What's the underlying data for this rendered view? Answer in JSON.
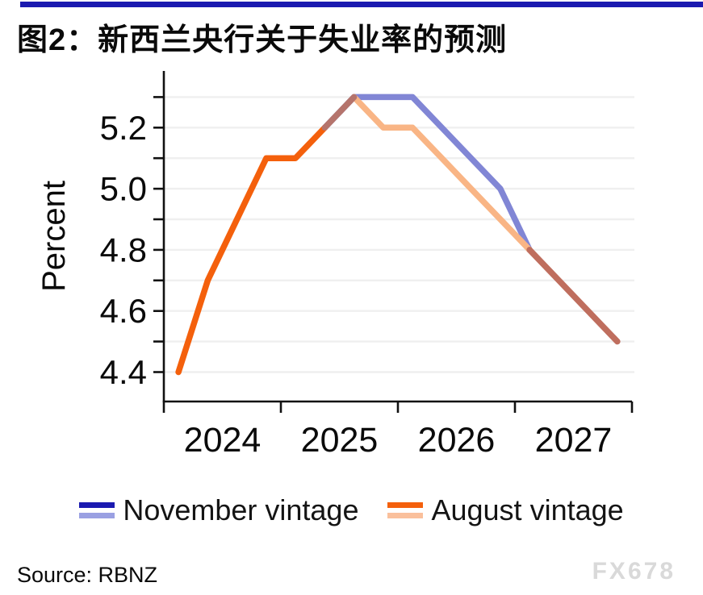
{
  "page": {
    "title": "图2：新西兰央行关于失业率的预测",
    "source": "Source: RBNZ",
    "watermark": "FX678"
  },
  "legend": {
    "items": [
      {
        "label": "November vintage",
        "color_dark": "#1b1ab0",
        "color_light": "#9aa0e2"
      },
      {
        "label": "August vintage",
        "color_dark": "#f4600c",
        "color_light": "#fac09c"
      }
    ]
  },
  "chart_data": {
    "type": "line",
    "title": "图2：新西兰央行关于失业率的预测",
    "xlabel": "",
    "ylabel": "Percent",
    "x_tick_labels": [
      "2024",
      "2025",
      "2026",
      "2027"
    ],
    "x_axis_year_ticks": [
      2024,
      2025,
      2026,
      2027,
      2028
    ],
    "xlim": [
      2024,
      2028
    ],
    "ylim": [
      4.3,
      5.39
    ],
    "grid": "horizontal",
    "legend_position": "bottom",
    "y_gridlines": [
      4.4,
      4.5,
      4.6,
      4.7,
      4.8,
      4.9,
      5.0,
      5.1,
      5.2,
      5.3
    ],
    "y_tick_values": [
      4.4,
      4.5,
      4.6,
      4.7,
      4.8,
      4.9,
      5.0,
      5.1,
      5.2,
      5.3
    ],
    "y_tick_labels": [
      {
        "value": 4.4,
        "label": "4.4"
      },
      {
        "value": 4.6,
        "label": "4.6"
      },
      {
        "value": 4.8,
        "label": "4.8"
      },
      {
        "value": 5.0,
        "label": "5.0"
      },
      {
        "value": 5.2,
        "label": "5.2"
      }
    ],
    "series": [
      {
        "name": "November vintage",
        "quarters": [
          "2025Q2",
          "2025Q3",
          "2025Q4",
          "2026Q1",
          "2026Q2",
          "2026Q3",
          "2026Q4",
          "2027Q1",
          "2027Q2",
          "2027Q3",
          "2027Q4"
        ],
        "values": [
          5.2,
          5.3,
          5.3,
          5.3,
          5.2,
          5.1,
          5.0,
          4.8,
          4.7,
          4.6,
          4.5
        ]
      },
      {
        "name": "August vintage",
        "quarters": [
          "2024Q1",
          "2024Q2",
          "2024Q3",
          "2024Q4",
          "2025Q1",
          "2025Q2",
          "2025Q3",
          "2025Q4",
          "2026Q1",
          "2026Q2",
          "2026Q3",
          "2026Q4",
          "2027Q1",
          "2027Q2",
          "2027Q3",
          "2027Q4"
        ],
        "values": [
          4.4,
          4.7,
          4.9,
          5.1,
          5.1,
          5.2,
          5.3,
          5.2,
          5.2,
          5.1,
          5.0,
          4.9,
          4.8,
          4.7,
          4.6,
          4.5
        ]
      }
    ],
    "colors": {
      "november_forecast": "#8186d5",
      "august_forecast": "#f9b585",
      "august_history": "#f4600c",
      "overlap_history": "#b5746c",
      "overlap_forecast": "#bf6e5e",
      "gridline": "#efefef",
      "axis": "#111111",
      "tick_text": "#0a0a0a"
    },
    "visual_segments": [
      {
        "name": "november-line",
        "color": "november_forecast",
        "points": [
          [
            5,
            5.2
          ],
          [
            6,
            5.3
          ],
          [
            7,
            5.3
          ],
          [
            8,
            5.3
          ],
          [
            9,
            5.2
          ],
          [
            10,
            5.1
          ],
          [
            11,
            5.0
          ],
          [
            12,
            4.8
          ]
        ]
      },
      {
        "name": "august-forecast-line",
        "color": "august_forecast",
        "points": [
          [
            6,
            5.3
          ],
          [
            7,
            5.2
          ],
          [
            8,
            5.2
          ],
          [
            9,
            5.1
          ],
          [
            10,
            5.0
          ],
          [
            11,
            4.9
          ],
          [
            12,
            4.8
          ]
        ]
      },
      {
        "name": "august-history-line",
        "color": "august_history",
        "points": [
          [
            0,
            4.4
          ],
          [
            1,
            4.7
          ],
          [
            2,
            4.9
          ],
          [
            3,
            5.1
          ],
          [
            4,
            5.1
          ],
          [
            5,
            5.2
          ]
        ]
      },
      {
        "name": "overlap-rise-line",
        "color": "overlap_history",
        "points": [
          [
            5,
            5.2
          ],
          [
            6,
            5.3
          ]
        ]
      },
      {
        "name": "merged-tail-line",
        "color": "overlap_forecast",
        "points": [
          [
            12,
            4.8
          ],
          [
            13,
            4.7
          ],
          [
            14,
            4.6
          ],
          [
            15,
            4.5
          ]
        ]
      }
    ]
  }
}
